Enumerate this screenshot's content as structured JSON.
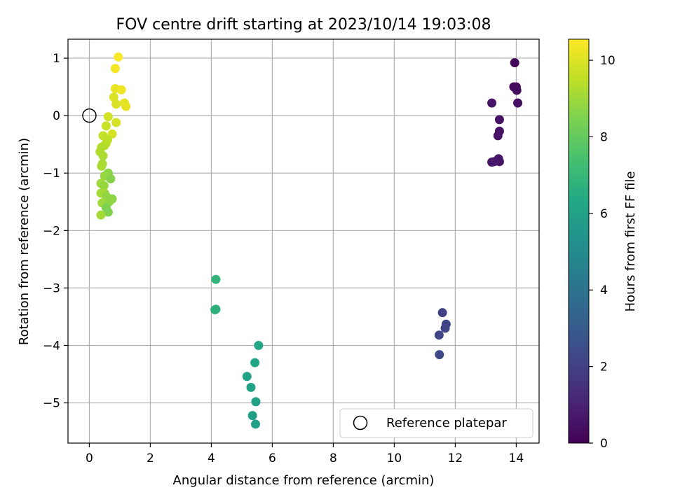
{
  "chart_data": {
    "type": "scatter",
    "title": "FOV centre drift starting at 2023/10/14 19:03:08",
    "xlabel": "Angular distance from reference (arcmin)",
    "ylabel": "Rotation from reference (arcmin)",
    "xlim": [
      -0.7,
      14.75
    ],
    "ylim": [
      -5.7,
      1.33
    ],
    "xticks": [
      0,
      2,
      4,
      6,
      8,
      10,
      12,
      14
    ],
    "yticks": [
      1,
      0,
      -1,
      -2,
      -3,
      -4,
      -5
    ],
    "grid": true,
    "legend": {
      "location": "lower-right",
      "entries": [
        "Reference platepar"
      ]
    },
    "reference_point": {
      "x": 0,
      "y": 0,
      "label": "Reference platepar"
    },
    "colorbar": {
      "label": "Hours from first FF file",
      "colormap": "viridis",
      "range": [
        0,
        10.55
      ],
      "ticks": [
        0,
        2,
        4,
        6,
        8,
        10
      ]
    },
    "points": [
      {
        "x": 13.95,
        "y": 0.92,
        "h": 0.1
      },
      {
        "x": 13.92,
        "y": 0.5,
        "h": 0.2
      },
      {
        "x": 14.0,
        "y": 0.5,
        "h": 0.25
      },
      {
        "x": 14.02,
        "y": 0.44,
        "h": 0.3
      },
      {
        "x": 14.05,
        "y": 0.22,
        "h": 0.4
      },
      {
        "x": 13.2,
        "y": 0.22,
        "h": 0.6
      },
      {
        "x": 13.45,
        "y": -0.07,
        "h": 0.5
      },
      {
        "x": 13.45,
        "y": -0.27,
        "h": 0.5
      },
      {
        "x": 13.4,
        "y": -0.35,
        "h": 0.55
      },
      {
        "x": 13.42,
        "y": -0.75,
        "h": 0.6
      },
      {
        "x": 13.45,
        "y": -0.8,
        "h": 0.6
      },
      {
        "x": 13.2,
        "y": -0.81,
        "h": 0.65
      },
      {
        "x": 13.28,
        "y": -0.8,
        "h": 0.7
      },
      {
        "x": 11.58,
        "y": -3.43,
        "h": 2.0
      },
      {
        "x": 11.7,
        "y": -3.63,
        "h": 2.1
      },
      {
        "x": 11.67,
        "y": -3.7,
        "h": 2.15
      },
      {
        "x": 11.47,
        "y": -3.82,
        "h": 2.2
      },
      {
        "x": 11.48,
        "y": -4.16,
        "h": 2.3
      },
      {
        "x": 4.15,
        "y": -2.85,
        "h": 6.85
      },
      {
        "x": 4.12,
        "y": -3.38,
        "h": 6.75
      },
      {
        "x": 4.15,
        "y": -3.37,
        "h": 6.7
      },
      {
        "x": 5.55,
        "y": -4.0,
        "h": 6.3
      },
      {
        "x": 5.43,
        "y": -4.3,
        "h": 6.2
      },
      {
        "x": 5.17,
        "y": -4.54,
        "h": 6.1
      },
      {
        "x": 5.3,
        "y": -4.73,
        "h": 6.05
      },
      {
        "x": 5.46,
        "y": -4.98,
        "h": 6.0
      },
      {
        "x": 5.35,
        "y": -5.22,
        "h": 5.95
      },
      {
        "x": 5.45,
        "y": -5.37,
        "h": 5.9
      },
      {
        "x": 0.95,
        "y": 1.02,
        "h": 10.5
      },
      {
        "x": 0.85,
        "y": 0.82,
        "h": 10.4
      },
      {
        "x": 0.85,
        "y": 0.47,
        "h": 10.2
      },
      {
        "x": 1.05,
        "y": 0.45,
        "h": 10.3
      },
      {
        "x": 0.8,
        "y": 0.32,
        "h": 10.0
      },
      {
        "x": 1.15,
        "y": 0.22,
        "h": 10.1
      },
      {
        "x": 0.88,
        "y": 0.2,
        "h": 10.0
      },
      {
        "x": 1.2,
        "y": 0.16,
        "h": 10.2
      },
      {
        "x": 0.62,
        "y": -0.02,
        "h": 9.8
      },
      {
        "x": 0.88,
        "y": -0.12,
        "h": 9.9
      },
      {
        "x": 0.55,
        "y": -0.18,
        "h": 9.7
      },
      {
        "x": 0.75,
        "y": -0.32,
        "h": 9.9
      },
      {
        "x": 0.45,
        "y": -0.35,
        "h": 9.6
      },
      {
        "x": 0.6,
        "y": -0.42,
        "h": 9.5
      },
      {
        "x": 0.55,
        "y": -0.48,
        "h": 9.5
      },
      {
        "x": 0.5,
        "y": -0.52,
        "h": 9.4
      },
      {
        "x": 0.4,
        "y": -0.55,
        "h": 9.3
      },
      {
        "x": 0.35,
        "y": -0.63,
        "h": 9.3
      },
      {
        "x": 0.45,
        "y": -0.7,
        "h": 9.2
      },
      {
        "x": 0.43,
        "y": -0.84,
        "h": 9.1
      },
      {
        "x": 0.4,
        "y": -0.88,
        "h": 9.2
      },
      {
        "x": 0.62,
        "y": -1.0,
        "h": 8.7
      },
      {
        "x": 0.5,
        "y": -1.05,
        "h": 8.9
      },
      {
        "x": 0.7,
        "y": -1.1,
        "h": 8.6
      },
      {
        "x": 0.38,
        "y": -1.18,
        "h": 9.0
      },
      {
        "x": 0.48,
        "y": -1.22,
        "h": 8.9
      },
      {
        "x": 0.5,
        "y": -1.35,
        "h": 9.0
      },
      {
        "x": 0.38,
        "y": -1.35,
        "h": 9.1
      },
      {
        "x": 0.55,
        "y": -1.4,
        "h": 8.8
      },
      {
        "x": 0.75,
        "y": -1.45,
        "h": 8.7
      },
      {
        "x": 0.42,
        "y": -1.52,
        "h": 9.0
      },
      {
        "x": 0.65,
        "y": -1.5,
        "h": 8.8
      },
      {
        "x": 0.55,
        "y": -1.6,
        "h": 8.5
      },
      {
        "x": 0.62,
        "y": -1.68,
        "h": 8.5
      },
      {
        "x": 0.38,
        "y": -1.73,
        "h": 9.1
      }
    ]
  }
}
